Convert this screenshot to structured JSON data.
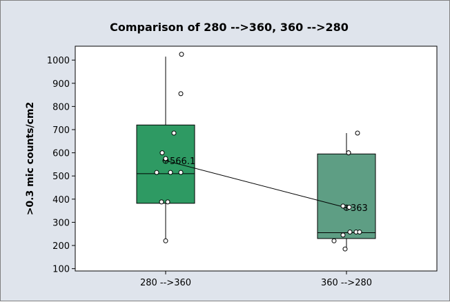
{
  "chart_data": {
    "type": "boxplot",
    "title": "Comparison of 280 -->360, 360 -->280",
    "xlabel": "",
    "ylabel": ">0.3 mic counts/cm2",
    "categories": [
      "280 -->360",
      "360 -->280"
    ],
    "ylim": [
      90,
      1060
    ],
    "yticks": [
      100,
      200,
      300,
      400,
      500,
      600,
      700,
      800,
      900,
      1000
    ],
    "boxes": [
      {
        "category": "280 -->360",
        "whisker_low": 220,
        "q1": 382,
        "median": 510,
        "q3": 720,
        "whisker_high": 1015,
        "mean": 566.1,
        "mean_label": "566.1",
        "color": "#2e9a63",
        "points": [
          220,
          388,
          388,
          515,
          515,
          515,
          575,
          600,
          685,
          855,
          1025
        ]
      },
      {
        "category": "360 -->280",
        "whisker_low": 182,
        "q1": 230,
        "median": 255,
        "q3": 595,
        "whisker_high": 685,
        "mean": 363,
        "mean_label": "363",
        "color": "#5e9e84",
        "points": [
          185,
          220,
          245,
          258,
          258,
          258,
          365,
          370,
          600,
          600,
          685
        ]
      }
    ],
    "mean_line": true,
    "grid": false,
    "legend": "none"
  },
  "colors": {
    "background": "#dfe4ec",
    "plot_area": "#ffffff"
  }
}
